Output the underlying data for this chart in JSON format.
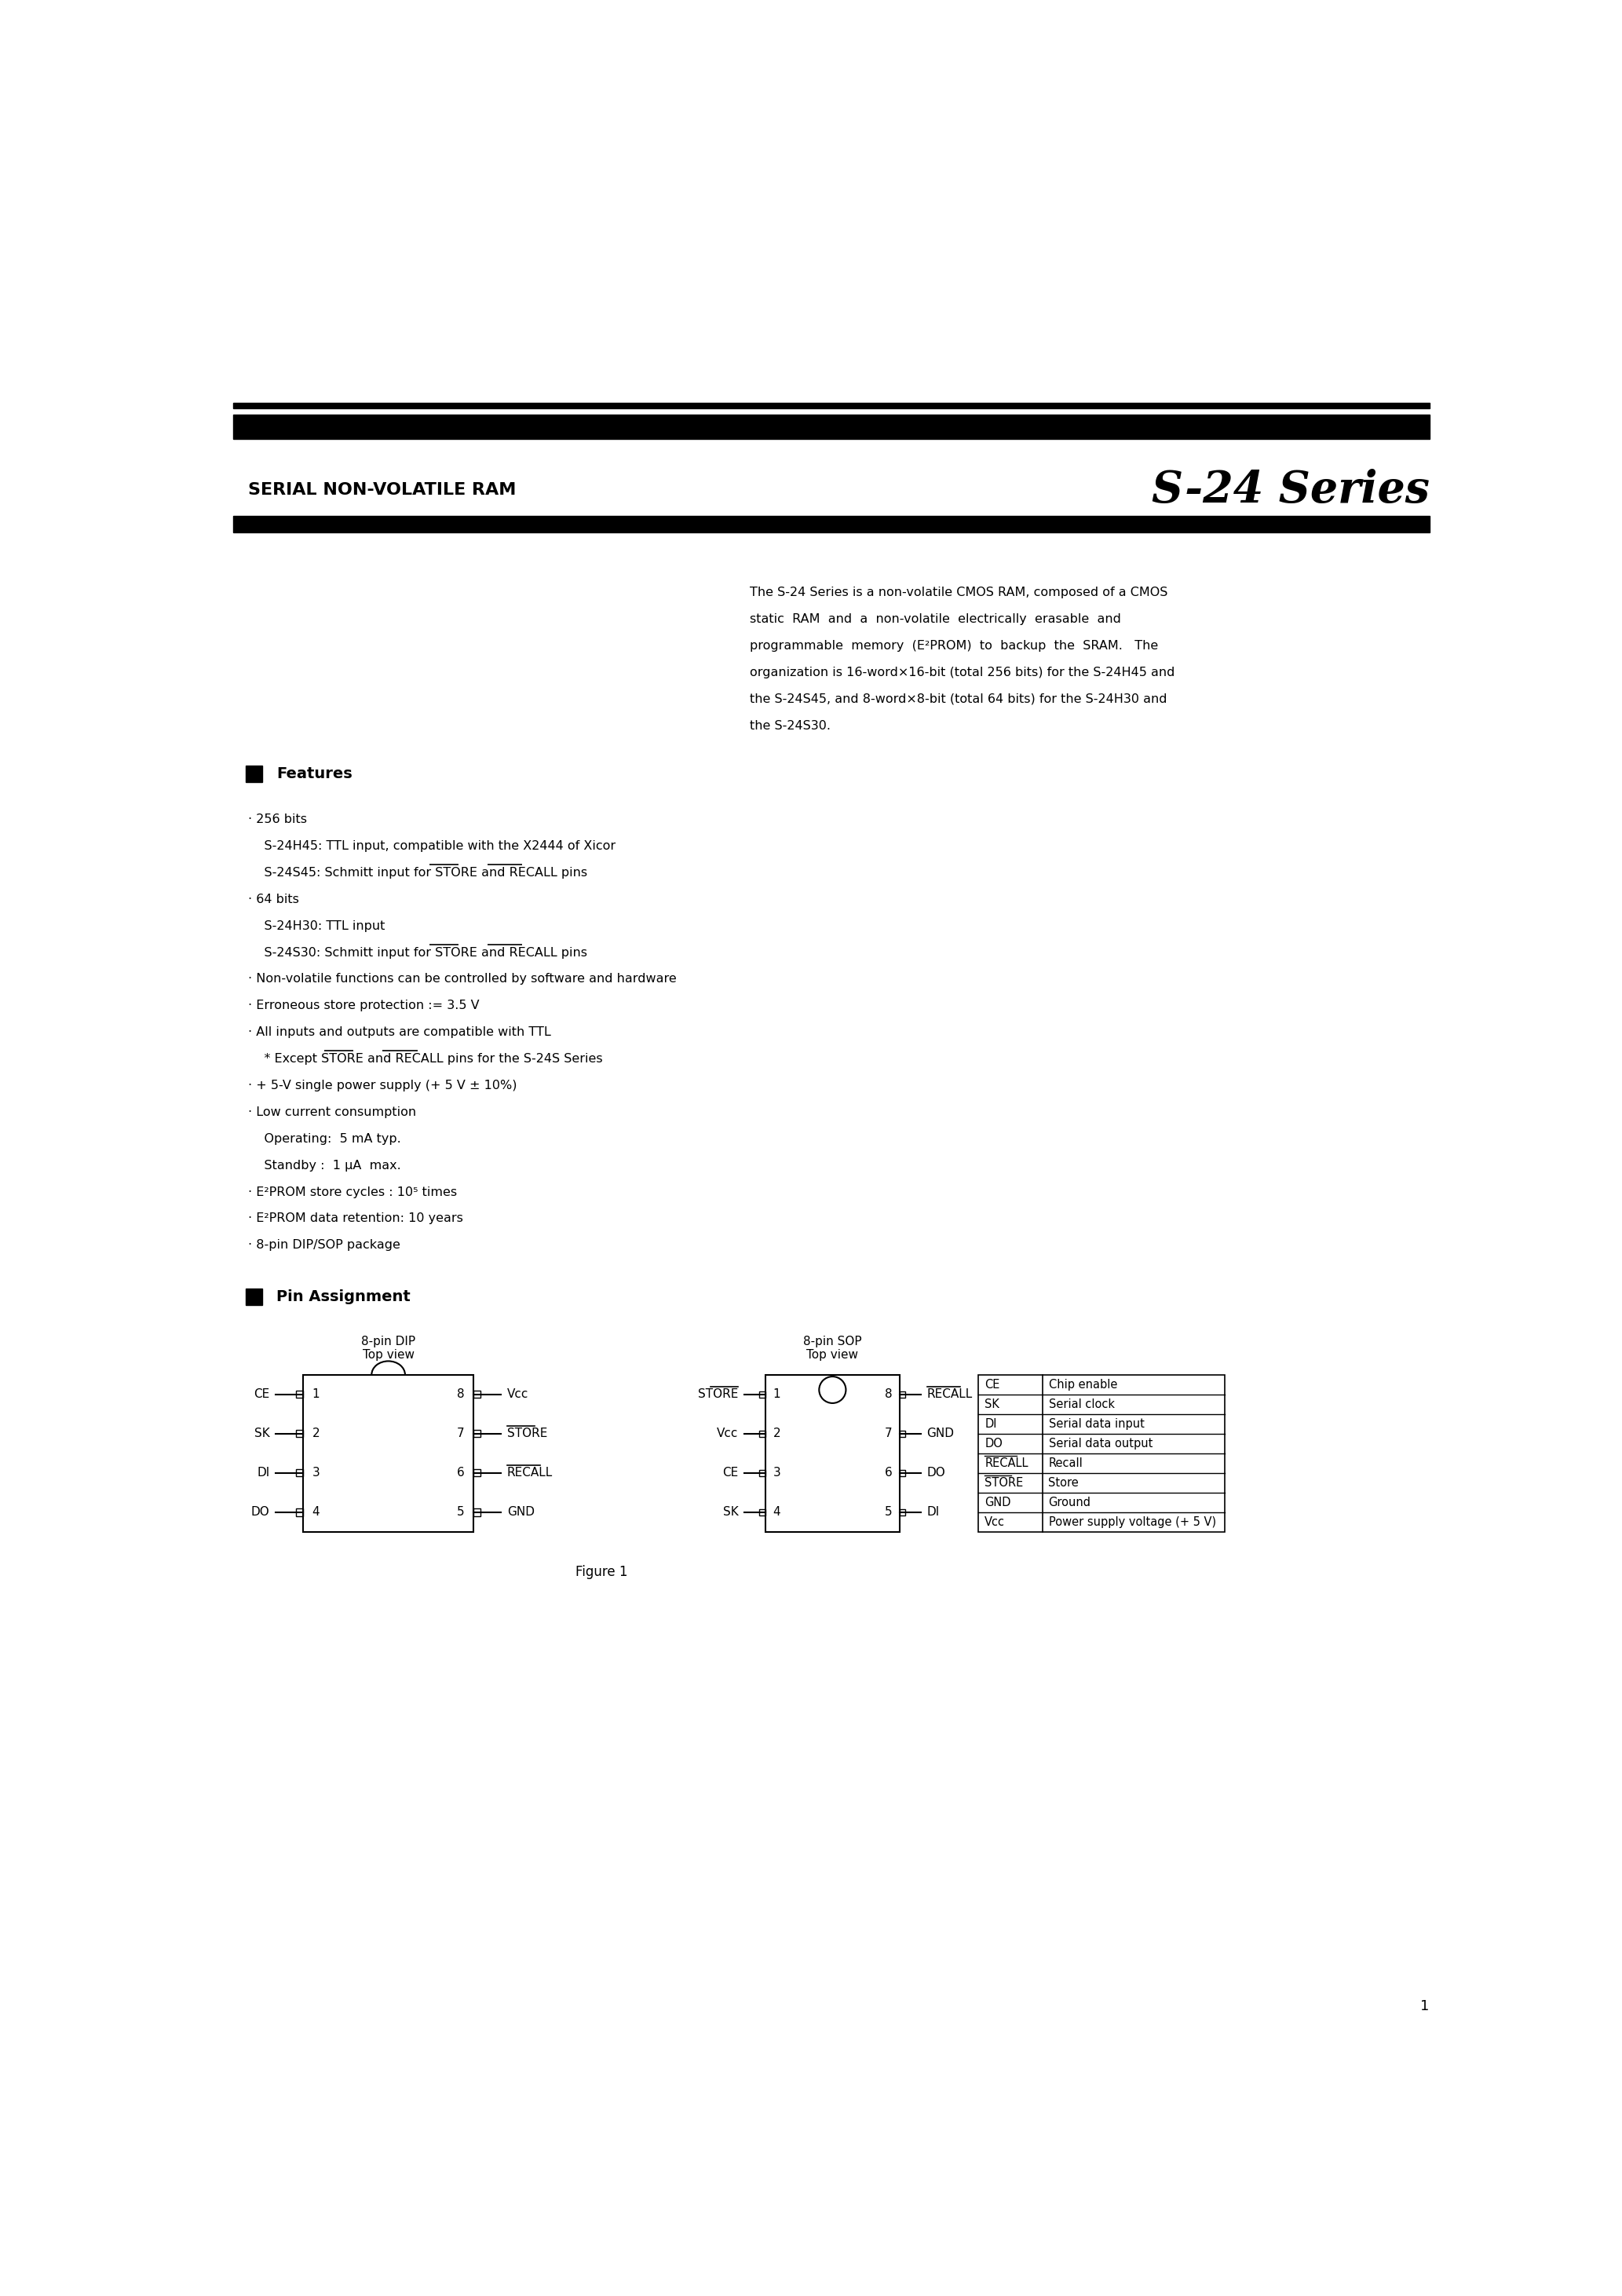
{
  "page_width": 20.66,
  "page_height": 29.24,
  "bg_color": "#ffffff",
  "text_color": "#000000",
  "header_left": "SERIAL NON-VOLATILE RAM",
  "header_right": "S-24 Series",
  "intro_text": [
    "The S-24 Series is a non-volatile CMOS RAM, composed of a CMOS",
    "static  RAM  and  a  non-volatile  electrically  erasable  and",
    "programmable  memory  (E²PROM)  to  backup  the  SRAM.   The",
    "organization is 16-word×16-bit (total 256 bits) for the S-24H45 and",
    "the S-24S45, and 8-word×8-bit (total 64 bits) for the S-24H30 and",
    "the S-24S30."
  ],
  "features_title": "Features",
  "features": [
    "· 256 bits",
    "    S-24H45: TTL input, compatible with the X2444 of Xicor",
    "    S-24S45: Schmitt input for STORE and RECALL pins",
    "· 64 bits",
    "    S-24H30: TTL input",
    "    S-24S30: Schmitt input for STORE and RECALL pins",
    "· Non-volatile functions can be controlled by software and hardware",
    "· Erroneous store protection := 3.5 V",
    "· All inputs and outputs are compatible with TTL",
    "    * Except STORE and RECALL pins for the S-24S Series",
    "· + 5-V single power supply (+ 5 V ± 10%)",
    "· Low current consumption",
    "    Operating:  5 mA typ.",
    "    Standby :  1 μA  max.",
    "· E²PROM store cycles : 10⁵ times",
    "· E²PROM data retention: 10 years",
    "· 8-pin DIP/SOP package"
  ],
  "pin_assign_title": "Pin Assignment",
  "dip_title": "8-pin DIP\nTop view",
  "sop_title": "8-pin SOP\nTop view",
  "figure_caption": "Figure 1",
  "page_number": "1",
  "dip_left_pins": [
    "CE",
    "SK",
    "DI",
    "DO"
  ],
  "dip_left_nums": [
    "1",
    "2",
    "3",
    "4"
  ],
  "dip_right_pins": [
    "Vcc",
    "STORE",
    "RECALL",
    "GND"
  ],
  "dip_right_nums": [
    "8",
    "7",
    "6",
    "5"
  ],
  "sop_left_pins": [
    "STORE",
    "Vcc",
    "CE",
    "SK"
  ],
  "sop_left_nums": [
    "1",
    "2",
    "3",
    "4"
  ],
  "sop_right_pins": [
    "RECALL",
    "GND",
    "DO",
    "DI"
  ],
  "sop_right_nums": [
    "8",
    "7",
    "6",
    "5"
  ],
  "pin_table_rows": [
    [
      "CE",
      "Chip enable"
    ],
    [
      "SK",
      "Serial clock"
    ],
    [
      "DI",
      "Serial data input"
    ],
    [
      "DO",
      "Serial data output"
    ],
    [
      "RECALL",
      "Recall"
    ],
    [
      "STORE",
      "Store"
    ],
    [
      "GND",
      "Ground"
    ],
    [
      "Vcc",
      "Power supply voltage (+ 5 V)"
    ]
  ]
}
